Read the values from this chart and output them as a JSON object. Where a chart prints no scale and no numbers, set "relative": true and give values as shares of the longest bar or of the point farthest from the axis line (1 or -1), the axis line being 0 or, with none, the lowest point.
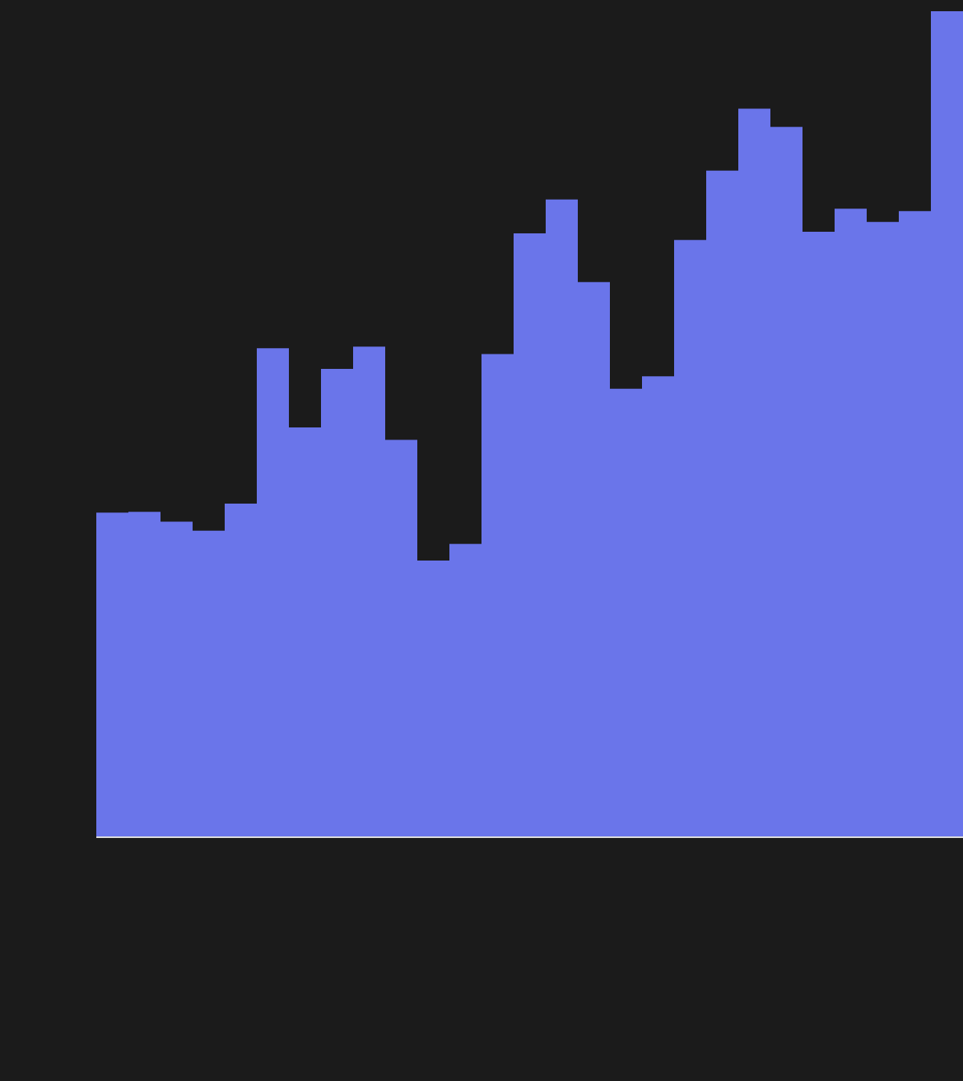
{
  "chart_data": {
    "type": "bar",
    "relative": true,
    "color": "#6a75ea",
    "categories": [
      null,
      null,
      null,
      null,
      null,
      null,
      null,
      null,
      null,
      null,
      null,
      null,
      null,
      null,
      null,
      null,
      null,
      null,
      null,
      null,
      null,
      null,
      null,
      null,
      null,
      null,
      null
    ],
    "values": [
      0.393,
      0.394,
      0.382,
      0.371,
      0.404,
      0.592,
      0.496,
      0.567,
      0.594,
      0.481,
      0.335,
      0.355,
      0.585,
      0.731,
      0.772,
      0.672,
      0.543,
      0.558,
      0.723,
      0.807,
      0.882,
      0.86,
      0.733,
      0.761,
      0.745,
      0.758,
      1
    ]
  }
}
